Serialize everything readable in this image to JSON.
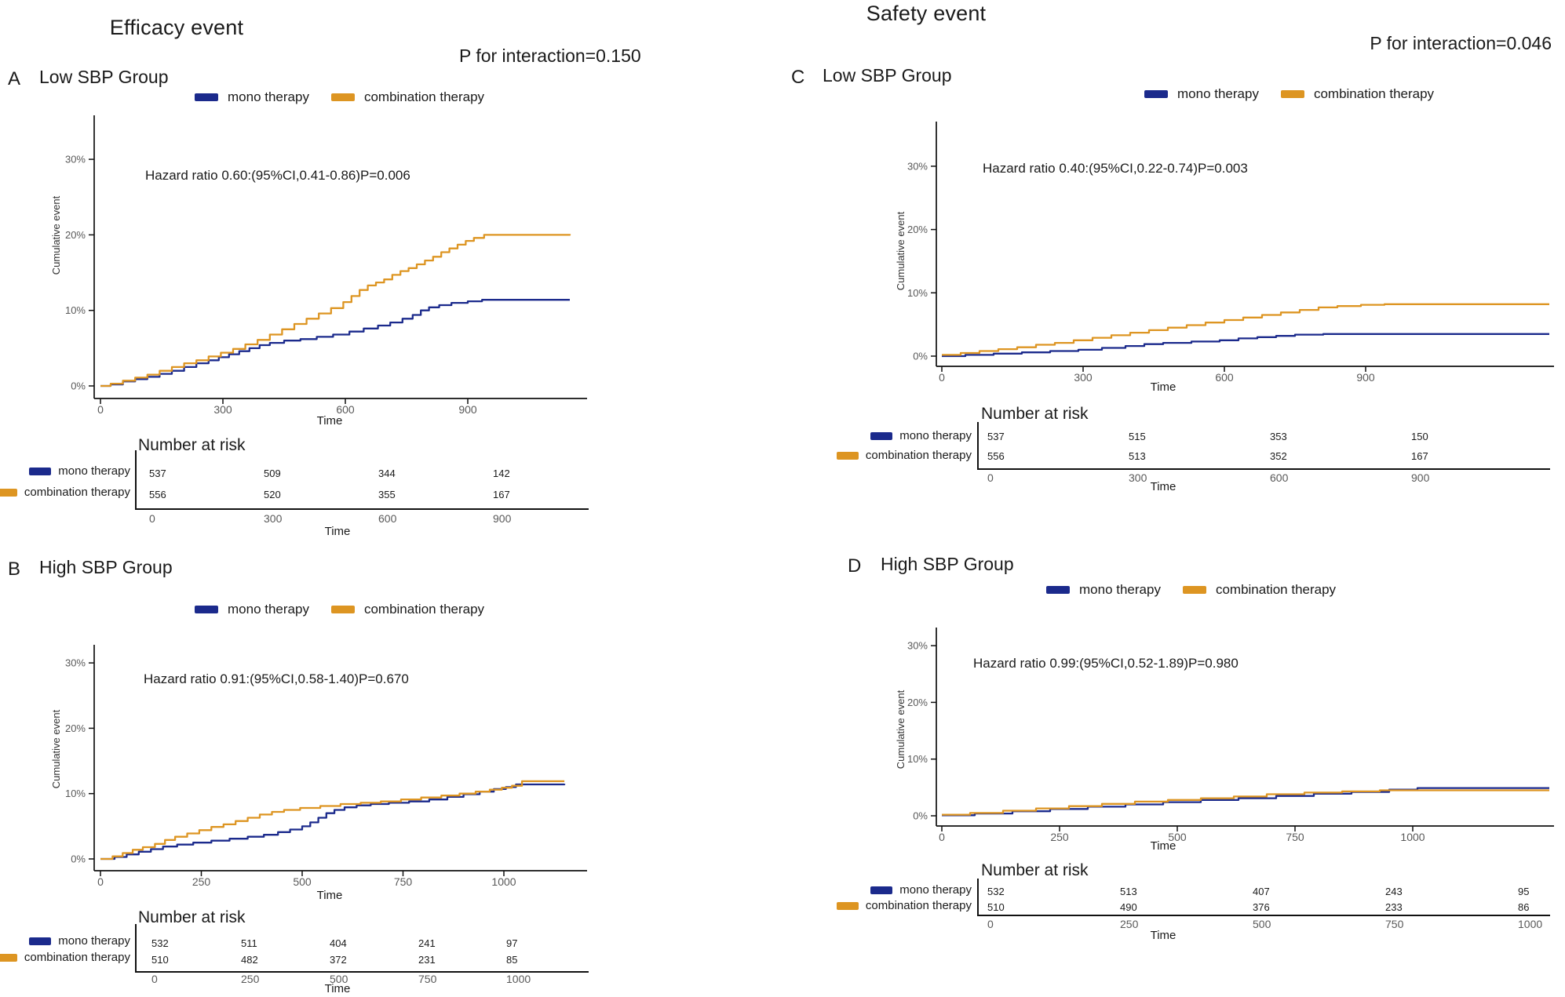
{
  "figure": {
    "efficacy": {
      "title": "Efficacy event",
      "p_interaction": "P for interaction=0.150"
    },
    "safety": {
      "title": "Safety event",
      "p_interaction": "P for interaction=0.046"
    }
  },
  "legend": {
    "mono": "mono therapy",
    "combo": "combination therapy"
  },
  "colors": {
    "mono": "#1b2a8c",
    "combo": "#dd9522"
  },
  "labels": {
    "ylabel": "Cumulative event",
    "xlabel": "Time",
    "number_at_risk": "Number at risk"
  },
  "chart_data": [
    {
      "panel": "A",
      "group": "Low SBP Group",
      "event_type": "Efficacy event",
      "type": "line",
      "subtype": "step-cumulative-incidence",
      "hazard_text": "Hazard ratio 0.60:(95%CI,0.41-0.86)P=0.006",
      "xlabel": "Time",
      "ylabel": "Cumulative event",
      "x_ticks": [
        0,
        300,
        600,
        900
      ],
      "y_ticks_pct": [
        0,
        10,
        20,
        30
      ],
      "xlim": [
        0,
        1150
      ],
      "ylim_pct": [
        0,
        30
      ],
      "grid": false,
      "legend_position": "top",
      "series": [
        {
          "name": "mono therapy",
          "color_key": "mono",
          "points": [
            [
              0,
              0
            ],
            [
              25,
              0.2
            ],
            [
              55,
              0.6
            ],
            [
              85,
              0.9
            ],
            [
              115,
              1.2
            ],
            [
              145,
              1.6
            ],
            [
              175,
              2.0
            ],
            [
              205,
              2.5
            ],
            [
              235,
              3.0
            ],
            [
              265,
              3.4
            ],
            [
              290,
              3.8
            ],
            [
              315,
              4.2
            ],
            [
              340,
              4.6
            ],
            [
              365,
              5.0
            ],
            [
              390,
              5.4
            ],
            [
              415,
              5.7
            ],
            [
              450,
              6.0
            ],
            [
              490,
              6.2
            ],
            [
              530,
              6.5
            ],
            [
              570,
              6.8
            ],
            [
              610,
              7.2
            ],
            [
              645,
              7.6
            ],
            [
              680,
              8.0
            ],
            [
              710,
              8.4
            ],
            [
              740,
              8.9
            ],
            [
              765,
              9.4
            ],
            [
              785,
              10.0
            ],
            [
              805,
              10.4
            ],
            [
              830,
              10.7
            ],
            [
              860,
              11.0
            ],
            [
              900,
              11.2
            ],
            [
              935,
              11.4
            ],
            [
              1150,
              11.4
            ]
          ]
        },
        {
          "name": "combination therapy",
          "color_key": "combo",
          "points": [
            [
              0,
              0
            ],
            [
              25,
              0.3
            ],
            [
              55,
              0.7
            ],
            [
              85,
              1.1
            ],
            [
              115,
              1.5
            ],
            [
              145,
              2.0
            ],
            [
              175,
              2.5
            ],
            [
              205,
              3.0
            ],
            [
              235,
              3.4
            ],
            [
              265,
              3.9
            ],
            [
              295,
              4.4
            ],
            [
              325,
              4.9
            ],
            [
              355,
              5.5
            ],
            [
              385,
              6.1
            ],
            [
              415,
              6.8
            ],
            [
              445,
              7.5
            ],
            [
              475,
              8.2
            ],
            [
              505,
              8.9
            ],
            [
              535,
              9.6
            ],
            [
              565,
              10.3
            ],
            [
              595,
              11.1
            ],
            [
              615,
              11.9
            ],
            [
              635,
              12.7
            ],
            [
              655,
              13.3
            ],
            [
              675,
              13.7
            ],
            [
              695,
              14.1
            ],
            [
              715,
              14.7
            ],
            [
              735,
              15.2
            ],
            [
              755,
              15.6
            ],
            [
              775,
              16.1
            ],
            [
              795,
              16.6
            ],
            [
              815,
              17.1
            ],
            [
              835,
              17.7
            ],
            [
              855,
              18.2
            ],
            [
              875,
              18.7
            ],
            [
              895,
              19.2
            ],
            [
              915,
              19.6
            ],
            [
              940,
              20.0
            ],
            [
              1150,
              20.1
            ]
          ]
        }
      ],
      "number_at_risk": {
        "times": [
          0,
          300,
          600,
          900
        ],
        "rows": [
          {
            "name": "mono therapy",
            "values": [
              537,
              509,
              344,
              142
            ]
          },
          {
            "name": "combination therapy",
            "values": [
              556,
              520,
              355,
              167
            ]
          }
        ]
      }
    },
    {
      "panel": "B",
      "group": "High SBP Group",
      "event_type": "Efficacy event",
      "type": "line",
      "subtype": "step-cumulative-incidence",
      "hazard_text": "Hazard ratio 0.91:(95%CI,0.58-1.40)P=0.670",
      "xlabel": "Time",
      "ylabel": "Cumulative event",
      "x_ticks": [
        0,
        250,
        500,
        750,
        1000
      ],
      "y_ticks_pct": [
        0,
        10,
        20,
        30
      ],
      "xlim": [
        0,
        1150
      ],
      "ylim_pct": [
        0,
        30
      ],
      "grid": false,
      "legend_position": "top",
      "series": [
        {
          "name": "mono therapy",
          "color_key": "mono",
          "points": [
            [
              0,
              0
            ],
            [
              35,
              0.3
            ],
            [
              65,
              0.7
            ],
            [
              95,
              1.1
            ],
            [
              125,
              1.5
            ],
            [
              155,
              1.9
            ],
            [
              190,
              2.2
            ],
            [
              230,
              2.5
            ],
            [
              275,
              2.8
            ],
            [
              320,
              3.1
            ],
            [
              365,
              3.4
            ],
            [
              405,
              3.7
            ],
            [
              440,
              4.1
            ],
            [
              470,
              4.5
            ],
            [
              500,
              5.0
            ],
            [
              520,
              5.6
            ],
            [
              540,
              6.3
            ],
            [
              560,
              7.0
            ],
            [
              580,
              7.5
            ],
            [
              605,
              7.9
            ],
            [
              635,
              8.2
            ],
            [
              670,
              8.4
            ],
            [
              715,
              8.6
            ],
            [
              765,
              8.8
            ],
            [
              815,
              9.1
            ],
            [
              860,
              9.5
            ],
            [
              900,
              9.9
            ],
            [
              940,
              10.3
            ],
            [
              975,
              10.7
            ],
            [
              1005,
              11.0
            ],
            [
              1030,
              11.4
            ],
            [
              1150,
              11.5
            ]
          ]
        },
        {
          "name": "combination therapy",
          "color_key": "combo",
          "points": [
            [
              0,
              0
            ],
            [
              30,
              0.4
            ],
            [
              55,
              0.9
            ],
            [
              80,
              1.4
            ],
            [
              105,
              1.8
            ],
            [
              135,
              2.3
            ],
            [
              160,
              2.9
            ],
            [
              185,
              3.4
            ],
            [
              215,
              3.9
            ],
            [
              245,
              4.4
            ],
            [
              275,
              4.9
            ],
            [
              305,
              5.3
            ],
            [
              335,
              5.8
            ],
            [
              365,
              6.3
            ],
            [
              395,
              6.8
            ],
            [
              425,
              7.2
            ],
            [
              455,
              7.5
            ],
            [
              495,
              7.8
            ],
            [
              545,
              8.1
            ],
            [
              595,
              8.4
            ],
            [
              645,
              8.6
            ],
            [
              695,
              8.8
            ],
            [
              745,
              9.1
            ],
            [
              795,
              9.4
            ],
            [
              845,
              9.7
            ],
            [
              890,
              10.0
            ],
            [
              930,
              10.3
            ],
            [
              965,
              10.6
            ],
            [
              995,
              10.9
            ],
            [
              1020,
              11.2
            ],
            [
              1045,
              11.9
            ],
            [
              1150,
              11.9
            ]
          ]
        }
      ],
      "number_at_risk": {
        "times": [
          0,
          250,
          500,
          750,
          1000
        ],
        "rows": [
          {
            "name": "mono therapy",
            "values": [
              532,
              511,
              404,
              241,
              97
            ]
          },
          {
            "name": "combination therapy",
            "values": [
              510,
              482,
              372,
              231,
              85
            ]
          }
        ]
      }
    },
    {
      "panel": "C",
      "group": "Low SBP Group",
      "event_type": "Safety event",
      "type": "line",
      "subtype": "step-cumulative-incidence",
      "hazard_text": "Hazard ratio 0.40:(95%CI,0.22-0.74)P=0.003",
      "xlabel": "Time",
      "ylabel": "Cumulative event",
      "x_ticks": [
        0,
        300,
        600,
        900
      ],
      "y_ticks_pct": [
        0,
        10,
        20,
        30
      ],
      "xlim": [
        0,
        1290
      ],
      "ylim_pct": [
        0,
        30
      ],
      "grid": false,
      "legend_position": "top",
      "series": [
        {
          "name": "mono therapy",
          "color_key": "mono",
          "points": [
            [
              0,
              0
            ],
            [
              50,
              0.2
            ],
            [
              110,
              0.4
            ],
            [
              170,
              0.6
            ],
            [
              230,
              0.8
            ],
            [
              290,
              1.0
            ],
            [
              340,
              1.3
            ],
            [
              390,
              1.6
            ],
            [
              430,
              1.9
            ],
            [
              470,
              2.1
            ],
            [
              530,
              2.3
            ],
            [
              590,
              2.5
            ],
            [
              630,
              2.8
            ],
            [
              670,
              3.0
            ],
            [
              710,
              3.2
            ],
            [
              750,
              3.4
            ],
            [
              810,
              3.5
            ],
            [
              1290,
              3.5
            ]
          ]
        },
        {
          "name": "combination therapy",
          "color_key": "combo",
          "points": [
            [
              0,
              0.2
            ],
            [
              40,
              0.5
            ],
            [
              80,
              0.8
            ],
            [
              120,
              1.1
            ],
            [
              160,
              1.4
            ],
            [
              200,
              1.8
            ],
            [
              240,
              2.1
            ],
            [
              280,
              2.5
            ],
            [
              320,
              2.9
            ],
            [
              360,
              3.3
            ],
            [
              400,
              3.7
            ],
            [
              440,
              4.1
            ],
            [
              480,
              4.5
            ],
            [
              520,
              4.9
            ],
            [
              560,
              5.3
            ],
            [
              600,
              5.7
            ],
            [
              640,
              6.1
            ],
            [
              680,
              6.5
            ],
            [
              720,
              6.9
            ],
            [
              760,
              7.3
            ],
            [
              800,
              7.7
            ],
            [
              840,
              7.9
            ],
            [
              890,
              8.1
            ],
            [
              940,
              8.2
            ],
            [
              1290,
              8.2
            ]
          ]
        }
      ],
      "number_at_risk": {
        "times": [
          0,
          300,
          600,
          900
        ],
        "rows": [
          {
            "name": "mono therapy",
            "values": [
              537,
              515,
              353,
              150
            ]
          },
          {
            "name": "combination therapy",
            "values": [
              556,
              513,
              352,
              167
            ]
          }
        ]
      }
    },
    {
      "panel": "D",
      "group": "High SBP Group",
      "event_type": "Safety event",
      "type": "line",
      "subtype": "step-cumulative-incidence",
      "hazard_text": "Hazard ratio 0.99:(95%CI,0.52-1.89)P=0.980",
      "xlabel": "Time",
      "ylabel": "Cumulative event",
      "x_ticks": [
        0,
        250,
        500,
        750,
        1000
      ],
      "y_ticks_pct": [
        0,
        10,
        20,
        30
      ],
      "xlim": [
        0,
        1290
      ],
      "ylim_pct": [
        0,
        30
      ],
      "grid": false,
      "legend_position": "top",
      "series": [
        {
          "name": "mono therapy",
          "color_key": "mono",
          "points": [
            [
              0,
              0.1
            ],
            [
              70,
              0.4
            ],
            [
              150,
              0.8
            ],
            [
              230,
              1.2
            ],
            [
              310,
              1.6
            ],
            [
              390,
              2.0
            ],
            [
              470,
              2.4
            ],
            [
              550,
              2.8
            ],
            [
              630,
              3.1
            ],
            [
              710,
              3.5
            ],
            [
              790,
              3.9
            ],
            [
              870,
              4.2
            ],
            [
              950,
              4.6
            ],
            [
              1010,
              4.9
            ],
            [
              1290,
              4.9
            ]
          ]
        },
        {
          "name": "combination therapy",
          "color_key": "combo",
          "points": [
            [
              0,
              0.2
            ],
            [
              60,
              0.5
            ],
            [
              130,
              0.9
            ],
            [
              200,
              1.3
            ],
            [
              270,
              1.7
            ],
            [
              340,
              2.1
            ],
            [
              410,
              2.5
            ],
            [
              480,
              2.8
            ],
            [
              550,
              3.1
            ],
            [
              620,
              3.4
            ],
            [
              690,
              3.8
            ],
            [
              770,
              4.1
            ],
            [
              850,
              4.3
            ],
            [
              930,
              4.5
            ],
            [
              1290,
              4.5
            ]
          ]
        }
      ],
      "number_at_risk": {
        "times": [
          0,
          250,
          500,
          750,
          1000
        ],
        "rows": [
          {
            "name": "mono therapy",
            "values": [
              532,
              513,
              407,
              243,
              95
            ]
          },
          {
            "name": "combination therapy",
            "values": [
              510,
              490,
              376,
              233,
              86
            ]
          }
        ]
      }
    }
  ]
}
